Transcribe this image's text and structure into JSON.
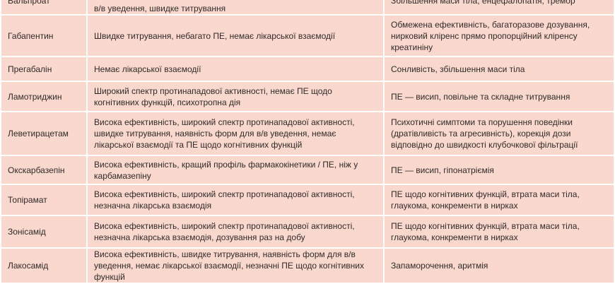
{
  "colors": {
    "cell_background": "#fbd8cd",
    "border": "#ffffff",
    "text": "#2e2a29"
  },
  "rows": [
    {
      "drug": "Вальпроат",
      "advantages": "в/в уведення, швидке титрування",
      "disadvantages": "Збільшення маси тіла, енцефалопатія, тремор"
    },
    {
      "drug": "Габапентин",
      "advantages": "Швидке титрування, небагато ПЕ, немає лікарської взаємодії",
      "disadvantages": "Обмежена ефективність, багаторазове дозування, нирковий кліренс прямо пропорційний кліренсу креатиніну"
    },
    {
      "drug": "Прегабалін",
      "advantages": "Немає лікарської взаємодії",
      "disadvantages": "Сонливість, збільшення маси тіла"
    },
    {
      "drug": "Ламотриджин",
      "advantages": "Широкий спектр протинападової активності, немає ПЕ щодо когнітивних функцій, психотропна дія",
      "disadvantages": "ПЕ — висип, повільне та складне титрування"
    },
    {
      "drug": "Леветирацетам",
      "advantages": "Висока ефективність, широкий спектр протинападової активності, швидке титрування, наявність форм для в/в уведення, немає лікарської взаємодії та ПЕ щодо когнітивних функцій",
      "disadvantages": "Психотичні симптоми та порушення поведінки (дратівливість та агресивність), корекція дози відповідно до швидкості клубочкової фільтрації"
    },
    {
      "drug": "Окскарбазепін",
      "advantages": "Висока ефективність, кращий профіль фармакокінетики / ПЕ, ніж у карбамазепіну",
      "disadvantages": "ПЕ — висип, гіпонатріємія"
    },
    {
      "drug": "Топірамат",
      "advantages": "Висока ефективність, широкий спектр протинападової активності, незначна лікарська взаємодія",
      "disadvantages": "ПЕ щодо когнітивних функцій, втрата маси тіла, глаукома, конкременти в нирках"
    },
    {
      "drug": "Зонісамід",
      "advantages": "Висока ефективність, широкий спектр протинападової активності, незначна лікарська взаємодія, дозування раз на добу",
      "disadvantages": "ПЕ щодо когнітивних функцій, втрата маси тіла, глаукома, конкременти в нирках"
    },
    {
      "drug": "Лакосамід",
      "advantages": "Висока ефективність, швидке титрування, наявність форм для в/в уведення, немає лікарської взаємодії, незначні ПЕ щодо когнітивних функцій",
      "disadvantages": "Запаморочення, аритмія"
    }
  ]
}
